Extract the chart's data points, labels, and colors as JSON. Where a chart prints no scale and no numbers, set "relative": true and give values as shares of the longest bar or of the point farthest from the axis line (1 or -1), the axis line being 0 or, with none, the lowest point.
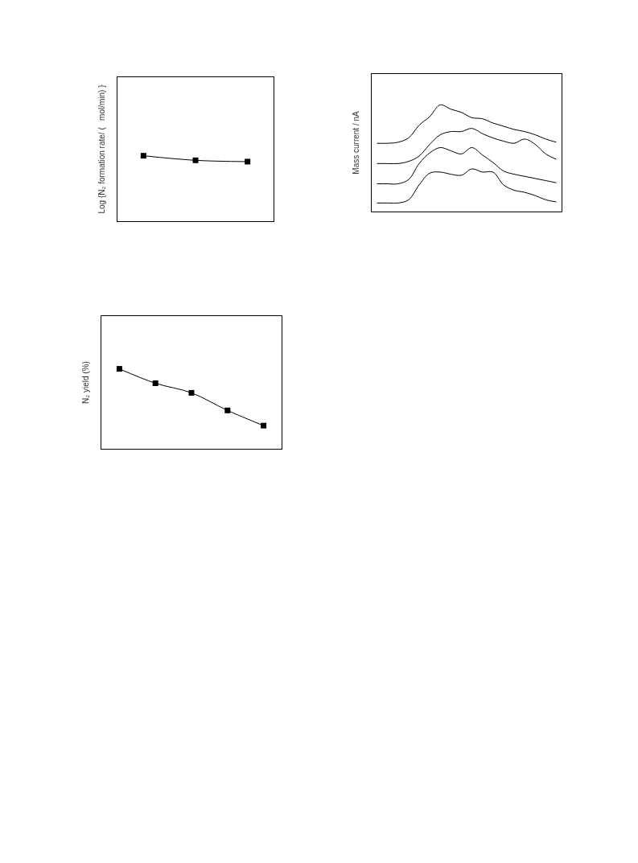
{
  "chart_data": [
    {
      "type": "line",
      "ylabel": "Log {N₂ formation rate/ (   mol/min) }",
      "relative": true,
      "marker": "square",
      "categories": [
        null,
        null,
        null
      ],
      "series": [
        {
          "color": "#000000",
          "values": [
            1,
            0.93,
            0.91
          ]
        }
      ]
    },
    {
      "type": "line",
      "ylabel": "Mass current / nA",
      "relative": true,
      "categories": [
        null,
        null,
        null,
        null,
        null,
        null,
        null,
        null,
        null,
        null,
        null,
        null,
        null,
        null,
        null,
        null,
        null,
        null
      ],
      "series": [
        {
          "color": "#000000",
          "values": [
            0.64,
            0.64,
            0.65,
            0.69,
            0.81,
            0.89,
            1,
            0.96,
            0.93,
            0.88,
            0.87,
            0.83,
            0.8,
            0.77,
            0.75,
            0.72,
            0.68,
            0.65
          ]
        },
        {
          "color": "#000000",
          "values": [
            0.45,
            0.45,
            0.45,
            0.47,
            0.52,
            0.63,
            0.72,
            0.75,
            0.75,
            0.78,
            0.73,
            0.69,
            0.66,
            0.64,
            0.68,
            0.63,
            0.54,
            0.49
          ]
        },
        {
          "color": "#000000",
          "values": [
            0.26,
            0.26,
            0.26,
            0.3,
            0.45,
            0.55,
            0.6,
            0.57,
            0.54,
            0.6,
            0.53,
            0.46,
            0.38,
            0.35,
            0.33,
            0.31,
            0.29,
            0.27
          ]
        },
        {
          "color": "#000000",
          "values": [
            0.08,
            0.08,
            0.08,
            0.11,
            0.25,
            0.36,
            0.37,
            0.35,
            0.34,
            0.4,
            0.37,
            0.37,
            0.25,
            0.2,
            0.18,
            0.15,
            0.11,
            0.09
          ]
        }
      ]
    },
    {
      "type": "line",
      "ylabel": "N₂ yield (%)",
      "relative": true,
      "marker": "square",
      "categories": [
        null,
        null,
        null,
        null,
        null
      ],
      "series": [
        {
          "color": "#000000",
          "values": [
            1,
            0.82,
            0.7,
            0.48,
            0.29
          ]
        }
      ]
    }
  ]
}
